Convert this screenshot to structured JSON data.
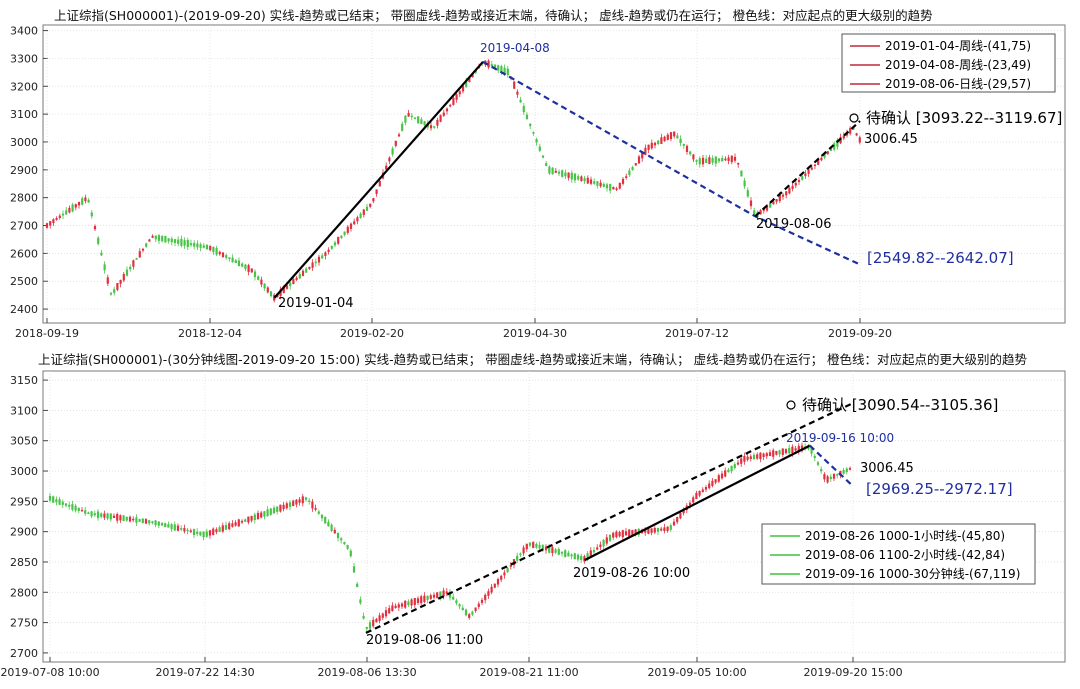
{
  "chart_data": [
    {
      "type": "line",
      "title": "上证综指(SH000001)-(2019-09-20)   实线-趋势或已结束；  带圈虚线-趋势或接近末端，待确认；   虚线-趋势或仍在运行；   橙色线：对应起点的更大级别的趋势",
      "x_ticks": [
        "2018-09-19",
        "2018-12-04",
        "2019-02-20",
        "2019-04-30",
        "2019-07-12",
        "2019-09-20"
      ],
      "y_ticks": [
        2400,
        2500,
        2600,
        2700,
        2800,
        2900,
        3000,
        3100,
        3200,
        3300,
        3400
      ],
      "ylim": [
        2350,
        3420
      ],
      "grid": true,
      "legend_position": "top-right",
      "legend": [
        "2019-01-04-周线-(41,75)",
        "2019-04-08-周线-(23,49)",
        "2019-08-06-日线-(29,57)"
      ],
      "series": [
        {
          "name": "2019-01-04-周线-(41,75)",
          "color": "#c0283a",
          "style": "solid-black-trend",
          "points": [
            [
              "2019-01-04",
              2440
            ],
            [
              "2019-04-08",
              3288
            ]
          ]
        },
        {
          "name": "2019-04-08-周线-(23,49)",
          "color": "#c0283a",
          "style": "dashed-blue",
          "points": [
            [
              "2019-04-08",
              3288
            ],
            [
              "2019-08-06",
              2733
            ],
            [
              "2019-09-20",
              2560
            ]
          ]
        },
        {
          "name": "2019-08-06-日线-(29,57)",
          "color": "#c0283a",
          "style": "dashed-black-circle",
          "points": [
            [
              "2019-08-06",
              2733
            ],
            [
              "2019-09-20",
              3075
            ]
          ]
        }
      ],
      "price_path": [
        [
          "2018-09-19",
          2700
        ],
        [
          "2018-10-08",
          2800
        ],
        [
          "2018-10-19",
          2450
        ],
        [
          "2018-11-07",
          2660
        ],
        [
          "2018-12-04",
          2620
        ],
        [
          "2018-12-24",
          2540
        ],
        [
          "2019-01-04",
          2440
        ],
        [
          "2019-01-29",
          2600
        ],
        [
          "2019-02-20",
          2780
        ],
        [
          "2019-03-07",
          3100
        ],
        [
          "2019-03-18",
          3050
        ],
        [
          "2019-04-08",
          3288
        ],
        [
          "2019-04-19",
          3250
        ],
        [
          "2019-05-06",
          2900
        ],
        [
          "2019-05-20",
          2870
        ],
        [
          "2019-06-06",
          2830
        ],
        [
          "2019-06-20",
          2980
        ],
        [
          "2019-07-02",
          3030
        ],
        [
          "2019-07-12",
          2930
        ],
        [
          "2019-07-29",
          2940
        ],
        [
          "2019-08-06",
          2733
        ],
        [
          "2019-08-20",
          2820
        ],
        [
          "2019-09-06",
          2960
        ],
        [
          "2019-09-17",
          3050
        ],
        [
          "2019-09-20",
          3006
        ]
      ],
      "annotations": [
        "2019-04-08",
        "2019-01-04",
        "2019-08-06",
        "待确认 [3093.22--3119.67]",
        "3006.45",
        "[2549.82--2642.07]"
      ]
    },
    {
      "type": "line",
      "title": "上证综指(SH000001)-(30分钟线图-2019-09-20 15:00)  实线-趋势或已结束；  带圈虚线-趋势或接近末端，待确认；  虚线-趋势或仍在运行；  橙色线：对应起点的更大级别的趋势",
      "x_ticks": [
        "2019-07-08 10:00",
        "2019-07-22 14:30",
        "2019-08-06 13:30",
        "2019-08-21 11:00",
        "2019-09-05 10:00",
        "2019-09-20 15:00"
      ],
      "y_ticks": [
        2700,
        2750,
        2800,
        2850,
        2900,
        2950,
        3000,
        3050,
        3100,
        3150
      ],
      "ylim": [
        2685,
        3165
      ],
      "grid": true,
      "legend_position": "bottom-right",
      "legend": [
        "2019-08-26 1000-1小时线-(45,80)",
        "2019-08-06 1100-2小时线-(42,84)",
        "2019-09-16 1000-30分钟线-(67,119)"
      ],
      "series": [
        {
          "name": "2019-08-26 1000-1小时线-(45,80)",
          "color": "#3bc43b",
          "style": "solid-black-trend",
          "points": [
            [
              "2019-08-26 10:00",
              2853
            ],
            [
              "2019-09-16 10:00",
              3042
            ]
          ]
        },
        {
          "name": "2019-08-06 1100-2小时线-(42,84)",
          "color": "#3bc43b",
          "style": "dashed-black-circle",
          "points": [
            [
              "2019-08-06 11:00",
              2733
            ],
            [
              "2019-09-20 15:00",
              3112
            ]
          ]
        },
        {
          "name": "2019-09-16 1000-30分钟线-(67,119)",
          "color": "#3bc43b",
          "style": "dashed-blue",
          "points": [
            [
              "2019-09-16 10:00",
              3042
            ],
            [
              "2019-09-20 15:00",
              2975
            ]
          ]
        }
      ],
      "price_path": [
        [
          "2019-07-08 10:00",
          2955
        ],
        [
          "2019-07-12",
          2930
        ],
        [
          "2019-07-18",
          2915
        ],
        [
          "2019-07-22 14:30",
          2895
        ],
        [
          "2019-07-29",
          2935
        ],
        [
          "2019-08-01",
          2955
        ],
        [
          "2019-08-05",
          2870
        ],
        [
          "2019-08-06 11:00",
          2740
        ],
        [
          "2019-08-09",
          2775
        ],
        [
          "2019-08-14",
          2800
        ],
        [
          "2019-08-16",
          2760
        ],
        [
          "2019-08-21 11:00",
          2880
        ],
        [
          "2019-08-26 10:00",
          2855
        ],
        [
          "2019-08-29",
          2895
        ],
        [
          "2019-09-03",
          2905
        ],
        [
          "2019-09-05 10:00",
          2960
        ],
        [
          "2019-09-10",
          3020
        ],
        [
          "2019-09-16 10:00",
          3040
        ],
        [
          "2019-09-18",
          2985
        ],
        [
          "2019-09-20 15:00",
          3006
        ]
      ],
      "annotations": [
        "待确认 [3090.54--3105.36]",
        "2019-09-16 10:00",
        "3006.45",
        "[2969.25--2972.17]",
        "2019-08-26 10:00",
        "2019-08-06 11:00"
      ]
    }
  ]
}
